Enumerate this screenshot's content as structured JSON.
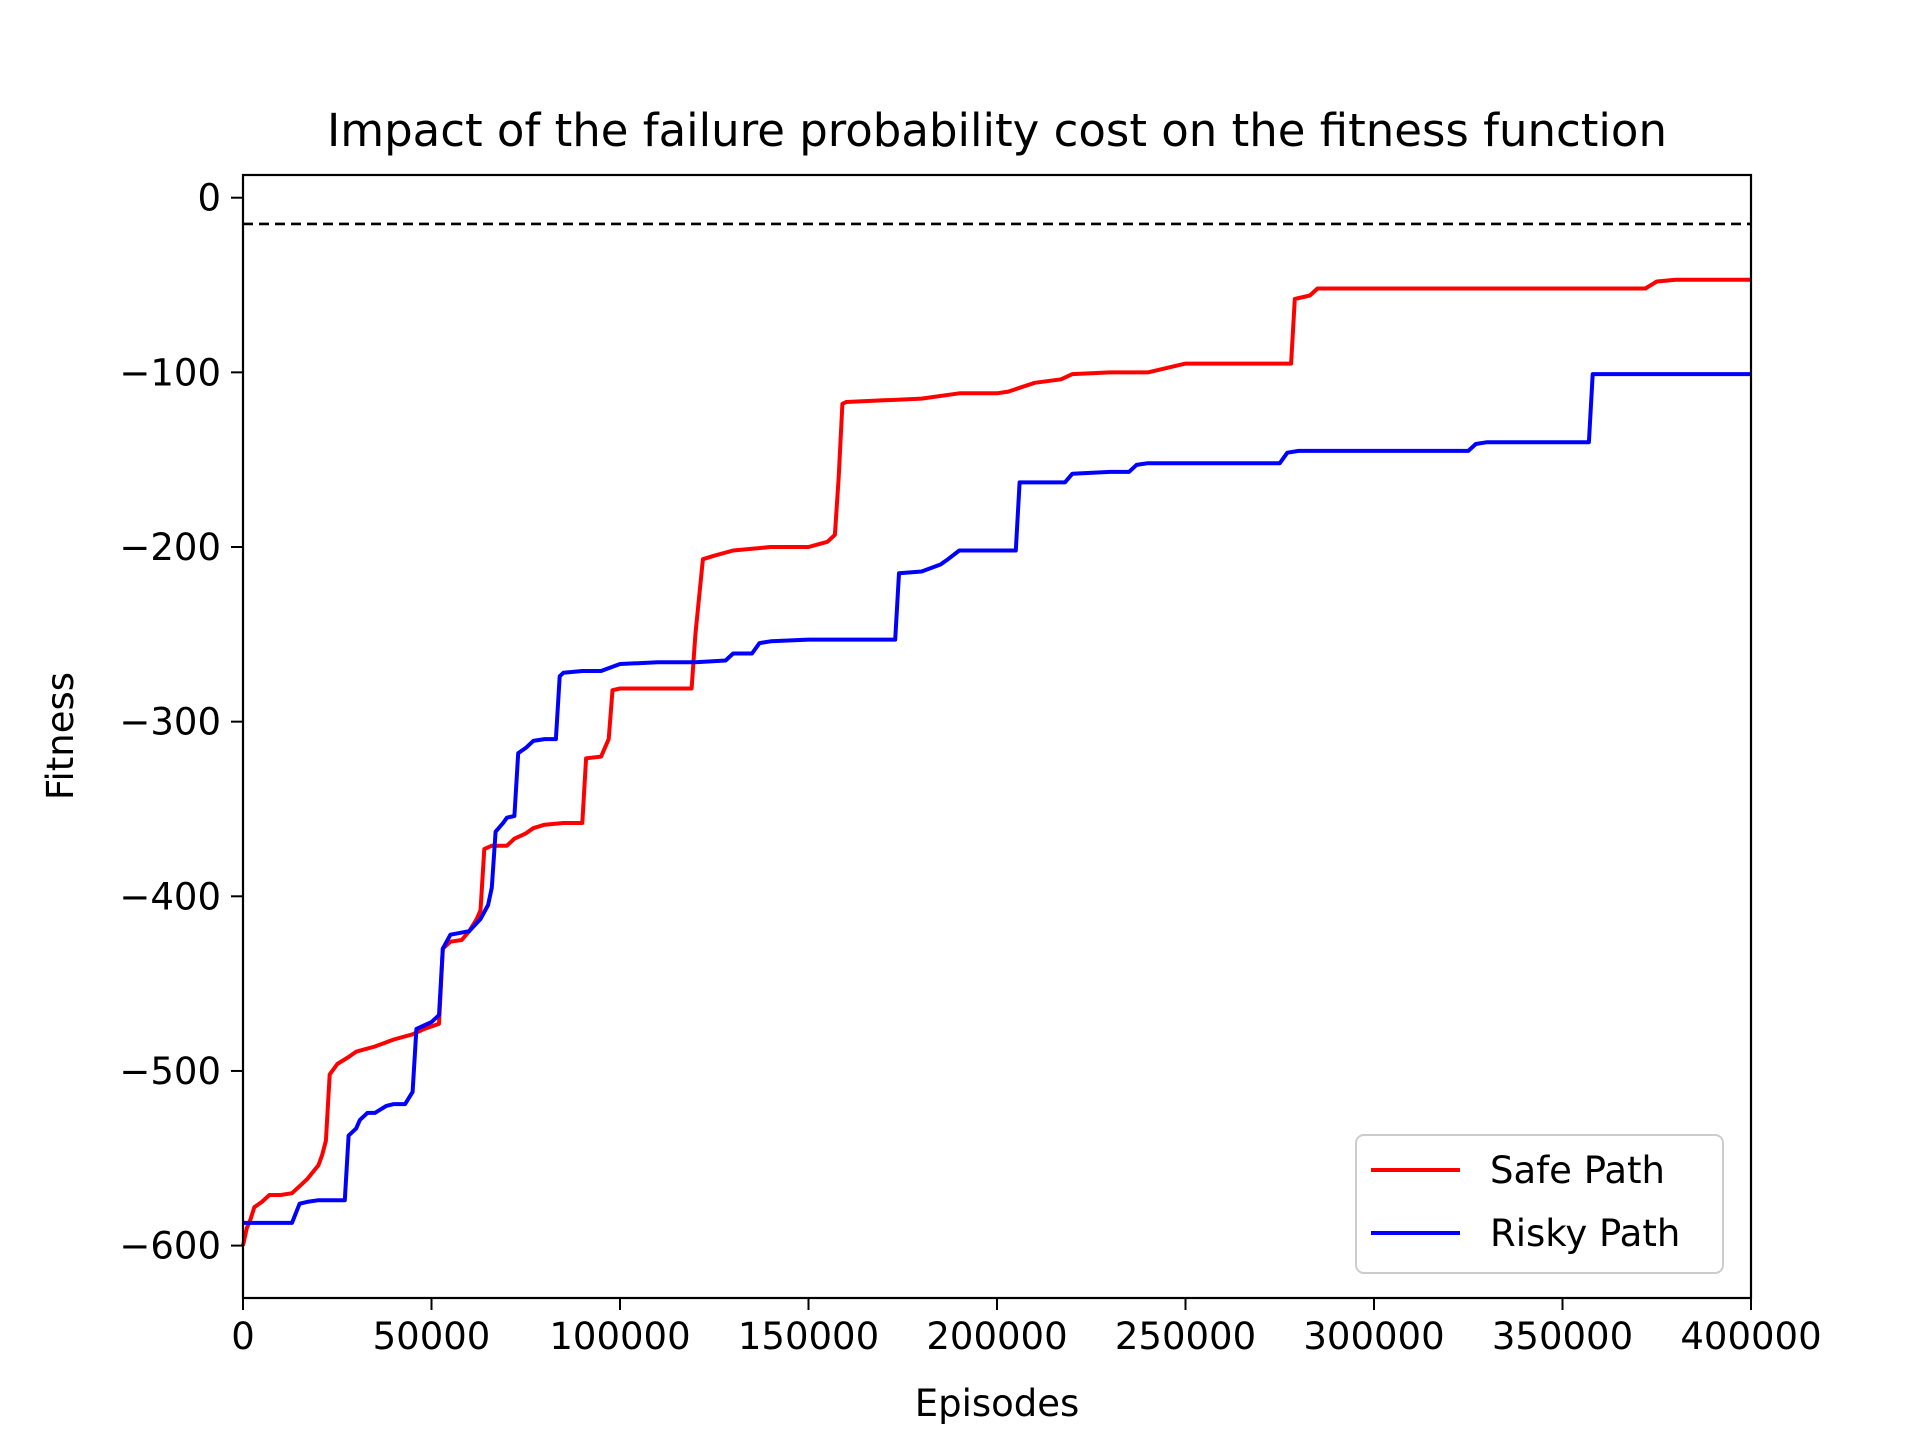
{
  "chart_data": {
    "type": "line",
    "title": "Impact of the failure probability cost on the fitness function",
    "xlabel": "Episodes",
    "ylabel": "Fitness",
    "xlim": [
      0,
      400000
    ],
    "ylim": [
      -630,
      13
    ],
    "xticks": [
      0,
      50000,
      100000,
      150000,
      200000,
      250000,
      300000,
      350000,
      400000
    ],
    "xtick_labels": [
      "0",
      "50000",
      "100000",
      "150000",
      "200000",
      "250000",
      "300000",
      "350000",
      "400000"
    ],
    "yticks": [
      0,
      -100,
      -200,
      -300,
      -400,
      -500,
      -600
    ],
    "ytick_labels": [
      "0",
      "−100",
      "−200",
      "−300",
      "−400",
      "−500",
      "−600"
    ],
    "grid": false,
    "legend_position": "lower-right",
    "reference_line": {
      "y": -15,
      "style": "dashed",
      "color": "#000000"
    },
    "series": [
      {
        "name": "Safe Path",
        "color": "#ff0000",
        "x": [
          0,
          1000,
          2000,
          3000,
          5000,
          7000,
          10000,
          13000,
          15000,
          17000,
          20000,
          21000,
          22000,
          23000,
          25000,
          28000,
          30000,
          35000,
          40000,
          45000,
          48000,
          52000,
          53000,
          55000,
          58000,
          60000,
          62000,
          63000,
          64000,
          66000,
          70000,
          72000,
          75000,
          77000,
          80000,
          85000,
          90000,
          91000,
          95000,
          97000,
          98000,
          100000,
          110000,
          119000,
          120000,
          122000,
          125000,
          130000,
          140000,
          150000,
          155000,
          157000,
          158000,
          159000,
          160000,
          170000,
          180000,
          190000,
          200000,
          203000,
          210000,
          217000,
          220000,
          230000,
          240000,
          250000,
          260000,
          270000,
          277000,
          278000,
          279000,
          283000,
          285000,
          290000,
          300000,
          320000,
          340000,
          360000,
          372000,
          375000,
          380000,
          390000,
          400000
        ],
        "y": [
          -600,
          -590,
          -585,
          -578,
          -575,
          -571,
          -571,
          -570,
          -566,
          -562,
          -554,
          -548,
          -540,
          -502,
          -496,
          -492,
          -489,
          -486,
          -482,
          -479,
          -476,
          -473,
          -430,
          -426,
          -425,
          -420,
          -413,
          -408,
          -373,
          -371,
          -371,
          -367,
          -364,
          -361,
          -359,
          -358,
          -358,
          -321,
          -320,
          -310,
          -282,
          -281,
          -281,
          -281,
          -250,
          -207,
          -205,
          -202,
          -200,
          -200,
          -197,
          -193,
          -160,
          -118,
          -117,
          -116,
          -115,
          -112,
          -112,
          -111,
          -106,
          -104,
          -101,
          -100,
          -100,
          -95,
          -95,
          -95,
          -95,
          -95,
          -58,
          -56,
          -52,
          -52,
          -52,
          -52,
          -52,
          -52,
          -52,
          -48,
          -47,
          -47,
          -47
        ]
      },
      {
        "name": "Risky Path",
        "color": "#0000ff",
        "x": [
          0,
          5000,
          10000,
          13000,
          15000,
          17000,
          20000,
          25000,
          27000,
          28000,
          30000,
          31000,
          33000,
          35000,
          38000,
          40000,
          43000,
          45000,
          46000,
          48000,
          50000,
          52000,
          53000,
          55000,
          60000,
          63000,
          65000,
          66000,
          67000,
          69000,
          70000,
          72000,
          73000,
          75000,
          77000,
          80000,
          83000,
          84000,
          85000,
          90000,
          95000,
          100000,
          110000,
          120000,
          128000,
          130000,
          135000,
          137000,
          140000,
          150000,
          160000,
          170000,
          173000,
          174000,
          180000,
          185000,
          187000,
          190000,
          200000,
          205000,
          206000,
          210000,
          218000,
          220000,
          230000,
          235000,
          237000,
          240000,
          250000,
          260000,
          270000,
          275000,
          277000,
          280000,
          300000,
          320000,
          325000,
          327000,
          330000,
          340000,
          350000,
          357000,
          358000,
          360000,
          380000,
          400000
        ],
        "y": [
          -587,
          -587,
          -587,
          -587,
          -576,
          -575,
          -574,
          -574,
          -574,
          -537,
          -533,
          -528,
          -524,
          -524,
          -520,
          -519,
          -519,
          -512,
          -476,
          -474,
          -472,
          -468,
          -430,
          -422,
          -420,
          -413,
          -405,
          -395,
          -363,
          -358,
          -355,
          -354,
          -318,
          -315,
          -311,
          -310,
          -310,
          -274,
          -272,
          -271,
          -271,
          -267,
          -266,
          -266,
          -265,
          -261,
          -261,
          -255,
          -254,
          -253,
          -253,
          -253,
          -253,
          -215,
          -214,
          -210,
          -207,
          -202,
          -202,
          -202,
          -163,
          -163,
          -163,
          -158,
          -157,
          -157,
          -153,
          -152,
          -152,
          -152,
          -152,
          -152,
          -146,
          -145,
          -145,
          -145,
          -145,
          -141,
          -140,
          -140,
          -140,
          -140,
          -101,
          -101,
          -101,
          -101
        ]
      }
    ]
  }
}
